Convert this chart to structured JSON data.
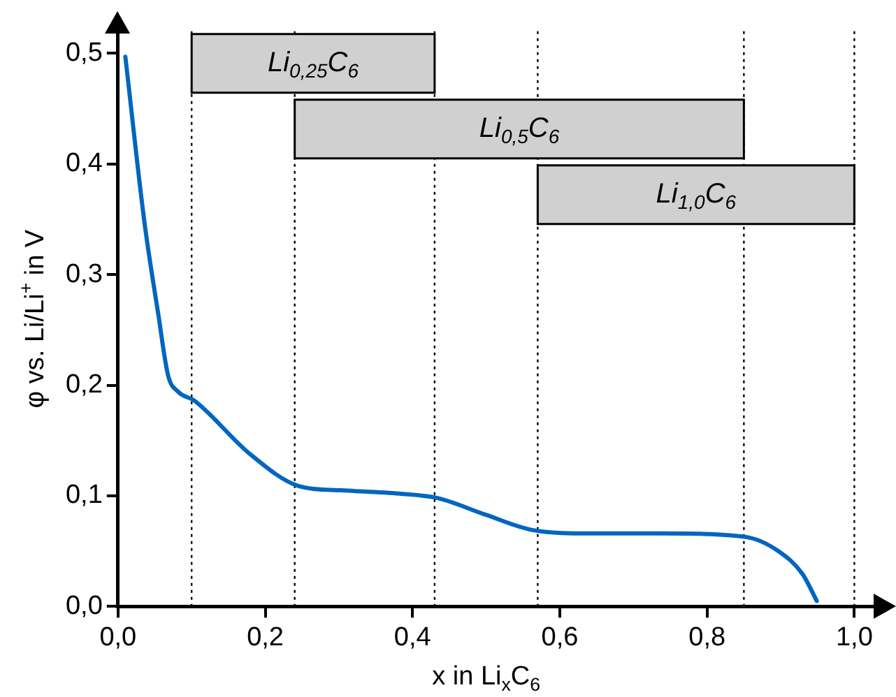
{
  "chart_data": {
    "type": "line",
    "xlabel": "x in Li$_{x}$C$_{6}$",
    "ylabel": "φ vs. Li/Li$^{+}$ in V",
    "xlim": [
      0,
      1.03
    ],
    "ylim": [
      0,
      0.52
    ],
    "xticks": [
      {
        "value": 0,
        "label": "0,0"
      },
      {
        "value": 0.2,
        "label": "0,2"
      },
      {
        "value": 0.4,
        "label": "0,4"
      },
      {
        "value": 0.6,
        "label": "0,6"
      },
      {
        "value": 0.8,
        "label": "0,8"
      },
      {
        "value": 1,
        "label": "1,0"
      }
    ],
    "yticks": [
      {
        "value": 0,
        "label": "0,0"
      },
      {
        "value": 0.1,
        "label": "0,1"
      },
      {
        "value": 0.2,
        "label": "0,2"
      },
      {
        "value": 0.3,
        "label": "0,3"
      },
      {
        "value": 0.4,
        "label": "0,4"
      },
      {
        "value": 0.5,
        "label": "0,5"
      }
    ],
    "grid": false,
    "legend": false,
    "marker": "none",
    "line_style": "solid",
    "series": [
      {
        "color": "#0066c0",
        "x": [
          0.01,
          0.036,
          0.055,
          0.068,
          0.082,
          0.104,
          0.179,
          0.245,
          0.303,
          0.382,
          0.434,
          0.499,
          0.564,
          0.642,
          0.74,
          0.851,
          0.897,
          0.93,
          0.949
        ],
        "values": [
          0.497,
          0.347,
          0.263,
          0.209,
          0.194,
          0.186,
          0.138,
          0.109,
          0.105,
          0.102,
          0.098,
          0.083,
          0.069,
          0.066,
          0.066,
          0.063,
          0.05,
          0.029,
          0.005
        ]
      }
    ],
    "ref_lines": [
      {
        "axis": "x",
        "value": 0.1,
        "line_style": "dotted",
        "color": "#000000"
      },
      {
        "axis": "x",
        "value": 0.24,
        "line_style": "dotted",
        "color": "#000000"
      },
      {
        "axis": "x",
        "value": 0.43,
        "line_style": "dotted",
        "color": "#000000"
      },
      {
        "axis": "x",
        "value": 0.57,
        "line_style": "dotted",
        "color": "#000000"
      },
      {
        "axis": "x",
        "value": 0.85,
        "line_style": "dotted",
        "color": "#000000"
      },
      {
        "axis": "x",
        "value": 1.0,
        "line_style": "dotted",
        "color": "#000000"
      }
    ],
    "bands": [
      {
        "axis": "x",
        "from": 0.1,
        "to": 0.43,
        "label": "Li$_{0,25}$C$_{6}$",
        "color": "#d0d0d0"
      },
      {
        "axis": "x",
        "from": 0.24,
        "to": 0.85,
        "label": "Li$_{0,5}$C$_{6}$",
        "color": "#d0d0d0"
      },
      {
        "axis": "x",
        "from": 0.57,
        "to": 1.0,
        "label": "Li$_{1,0}$C$_{6}$",
        "color": "#d0d0d0"
      }
    ]
  }
}
